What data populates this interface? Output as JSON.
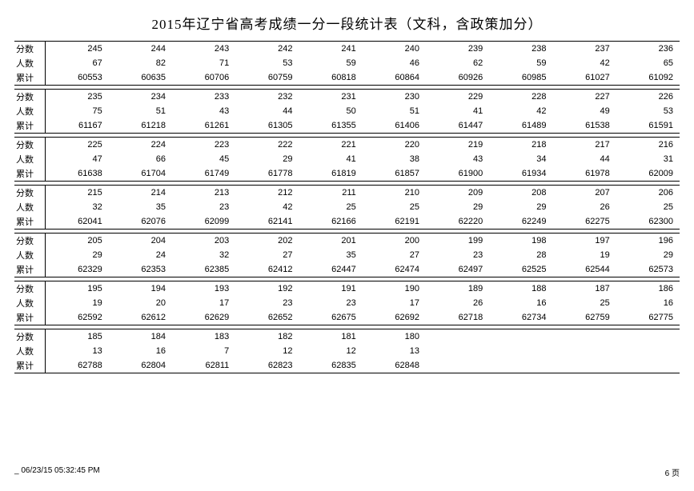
{
  "title": "2015年辽宁省高考成绩一分一段统计表（文科，含政策加分）",
  "row_labels": [
    "分数",
    "人数",
    "累计"
  ],
  "blocks": [
    {
      "score": [
        245,
        244,
        243,
        242,
        241,
        240,
        239,
        238,
        237,
        236
      ],
      "count": [
        67,
        82,
        71,
        53,
        59,
        46,
        62,
        59,
        42,
        65
      ],
      "cum": [
        60553,
        60635,
        60706,
        60759,
        60818,
        60864,
        60926,
        60985,
        61027,
        61092
      ]
    },
    {
      "score": [
        235,
        234,
        233,
        232,
        231,
        230,
        229,
        228,
        227,
        226
      ],
      "count": [
        75,
        51,
        43,
        44,
        50,
        51,
        41,
        42,
        49,
        53
      ],
      "cum": [
        61167,
        61218,
        61261,
        61305,
        61355,
        61406,
        61447,
        61489,
        61538,
        61591
      ]
    },
    {
      "score": [
        225,
        224,
        223,
        222,
        221,
        220,
        219,
        218,
        217,
        216
      ],
      "count": [
        47,
        66,
        45,
        29,
        41,
        38,
        43,
        34,
        44,
        31
      ],
      "cum": [
        61638,
        61704,
        61749,
        61778,
        61819,
        61857,
        61900,
        61934,
        61978,
        62009
      ]
    },
    {
      "score": [
        215,
        214,
        213,
        212,
        211,
        210,
        209,
        208,
        207,
        206
      ],
      "count": [
        32,
        35,
        23,
        42,
        25,
        25,
        29,
        29,
        26,
        25
      ],
      "cum": [
        62041,
        62076,
        62099,
        62141,
        62166,
        62191,
        62220,
        62249,
        62275,
        62300
      ]
    },
    {
      "score": [
        205,
        204,
        203,
        202,
        201,
        200,
        199,
        198,
        197,
        196
      ],
      "count": [
        29,
        24,
        32,
        27,
        35,
        27,
        23,
        28,
        19,
        29
      ],
      "cum": [
        62329,
        62353,
        62385,
        62412,
        62447,
        62474,
        62497,
        62525,
        62544,
        62573
      ]
    },
    {
      "score": [
        195,
        194,
        193,
        192,
        191,
        190,
        189,
        188,
        187,
        186
      ],
      "count": [
        19,
        20,
        17,
        23,
        23,
        17,
        26,
        16,
        25,
        16
      ],
      "cum": [
        62592,
        62612,
        62629,
        62652,
        62675,
        62692,
        62718,
        62734,
        62759,
        62775
      ]
    },
    {
      "score": [
        185,
        184,
        183,
        182,
        181,
        180
      ],
      "count": [
        13,
        16,
        7,
        12,
        12,
        13
      ],
      "cum": [
        62788,
        62804,
        62811,
        62823,
        62835,
        62848
      ]
    }
  ],
  "columns_per_block": 10,
  "footer": {
    "timestamp": "_ 06/23/15 05:32:45 PM",
    "page": "6 页"
  },
  "style": {
    "background_color": "#ffffff",
    "border_color": "#000000",
    "title_fontsize": 17,
    "cell_fontsize": 11,
    "footer_fontsize": 10
  }
}
